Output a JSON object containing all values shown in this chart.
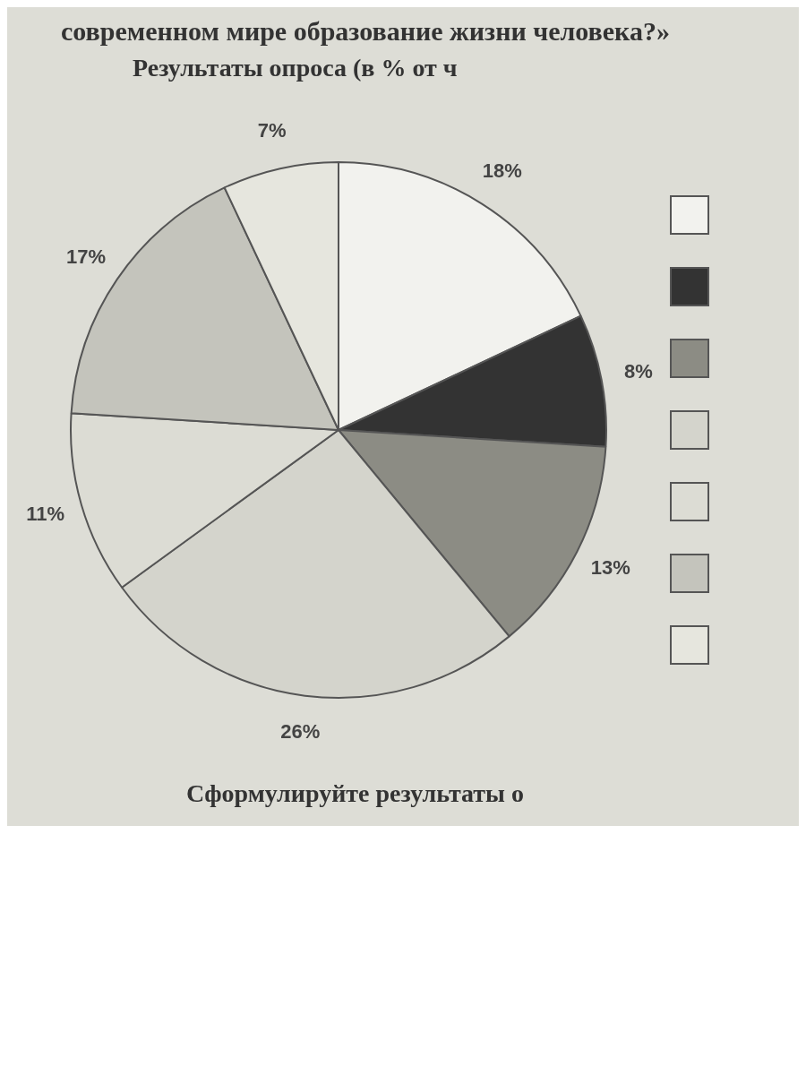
{
  "chart_data": {
    "type": "pie",
    "title": "современном мире образование жизни человека?»",
    "subtitle": "Результаты опроса (в % от ч",
    "annotations": [
      "Сформулируйте результаты о"
    ],
    "categories": [
      null,
      null,
      null,
      null,
      null,
      null,
      null
    ],
    "values": [
      18,
      8,
      13,
      26,
      11,
      17,
      7
    ],
    "value_labels": [
      "18%",
      "8%",
      "13%",
      "26%",
      "11%",
      "17%",
      "7%"
    ],
    "colors": [
      "#f2f2ee",
      "#333333",
      "#8c8c84",
      "#d4d4cc",
      "#dcdcd4",
      "#c4c4bc",
      "#e6e6de"
    ]
  }
}
